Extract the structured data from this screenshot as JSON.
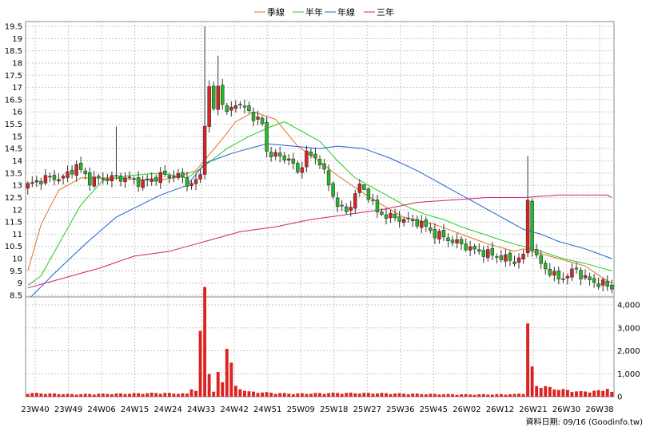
{
  "chart_data": {
    "type": "candlestick",
    "legend": [
      {
        "name": "季線",
        "color": "#e07020"
      },
      {
        "name": "半年",
        "color": "#20cc20"
      },
      {
        "name": "年線",
        "color": "#2060d0"
      },
      {
        "name": "三年",
        "color": "#d02070"
      }
    ],
    "price_axis": {
      "range": [
        8.5,
        19.5
      ],
      "ticks": [
        "8.5",
        "9",
        "9.5",
        "10",
        "10.5",
        "11",
        "11.5",
        "12",
        "12.5",
        "13",
        "13.5",
        "14",
        "14.5",
        "15",
        "15.5",
        "16",
        "16.5",
        "17",
        "17.5",
        "18",
        "18.5",
        "19",
        "19.5"
      ]
    },
    "volume_axis": {
      "range": [
        0,
        4000
      ],
      "ticks": [
        "0",
        "1,000",
        "2,000",
        "3,000",
        "4,000"
      ]
    },
    "x_labels": [
      "23W40",
      "23W49",
      "24W06",
      "24W15",
      "24W24",
      "24W33",
      "24W42",
      "24W51",
      "25W09",
      "25W18",
      "25W27",
      "25W36",
      "25W45",
      "26W02",
      "26W12",
      "26W21",
      "26W30",
      "26W38"
    ],
    "grid": true,
    "source_note": "資料日期: 09/16  (Goodinfo.tw)",
    "anchors": {
      "price": [
        [
          0,
          13.0
        ],
        [
          4,
          13.3
        ],
        [
          8,
          13.3
        ],
        [
          11,
          13.8
        ],
        [
          14,
          13.2
        ],
        [
          18,
          13.3
        ],
        [
          22,
          13.3
        ],
        [
          26,
          13.1
        ],
        [
          30,
          13.4
        ],
        [
          34,
          13.4
        ],
        [
          37,
          13.0
        ],
        [
          39,
          13.4
        ],
        [
          40,
          15.6
        ],
        [
          41,
          16.9
        ],
        [
          42,
          16.1
        ],
        [
          43,
          17.1
        ],
        [
          44,
          16.4
        ],
        [
          45,
          15.9
        ],
        [
          47,
          16.4
        ],
        [
          50,
          16.0
        ],
        [
          53,
          15.5
        ],
        [
          54,
          14.4
        ],
        [
          56,
          14.2
        ],
        [
          59,
          14.1
        ],
        [
          61,
          13.5
        ],
        [
          63,
          14.3
        ],
        [
          66,
          14.0
        ],
        [
          68,
          13.0
        ],
        [
          70,
          12.2
        ],
        [
          72,
          11.9
        ],
        [
          74,
          12.6
        ],
        [
          75,
          13.0
        ],
        [
          77,
          12.6
        ],
        [
          79,
          11.9
        ],
        [
          82,
          11.7
        ],
        [
          85,
          11.6
        ],
        [
          88,
          11.5
        ],
        [
          90,
          11.3
        ],
        [
          92,
          11.0
        ],
        [
          94,
          10.9
        ],
        [
          96,
          10.7
        ],
        [
          98,
          10.6
        ],
        [
          100,
          10.4
        ],
        [
          102,
          10.3
        ],
        [
          104,
          10.2
        ],
        [
          106,
          10.1
        ],
        [
          108,
          10.0
        ],
        [
          110,
          9.9
        ],
        [
          112,
          10.1
        ],
        [
          113,
          12.4
        ],
        [
          114,
          10.5
        ],
        [
          115,
          10.0
        ],
        [
          117,
          9.6
        ],
        [
          119,
          9.3
        ],
        [
          120,
          9.2
        ],
        [
          122,
          9.3
        ],
        [
          124,
          9.6
        ],
        [
          125,
          9.3
        ],
        [
          127,
          9.1
        ],
        [
          129,
          9.0
        ],
        [
          131,
          8.9
        ],
        [
          132,
          8.8
        ]
      ],
      "ma_quarter": [
        [
          0,
          9.5
        ],
        [
          3,
          11.4
        ],
        [
          7,
          12.8
        ],
        [
          12,
          13.3
        ],
        [
          19,
          13.3
        ],
        [
          29,
          13.2
        ],
        [
          33,
          13.3
        ],
        [
          38,
          13.6
        ],
        [
          44,
          14.9
        ],
        [
          47,
          15.6
        ],
        [
          51,
          16.0
        ],
        [
          56,
          15.7
        ],
        [
          61,
          14.6
        ],
        [
          65,
          14.1
        ],
        [
          70,
          13.4
        ],
        [
          74,
          12.9
        ],
        [
          80,
          12.2
        ],
        [
          85,
          11.7
        ],
        [
          92,
          11.4
        ],
        [
          98,
          11.0
        ],
        [
          104,
          10.6
        ],
        [
          110,
          10.3
        ],
        [
          112,
          10.4
        ],
        [
          114,
          10.3
        ],
        [
          118,
          10.1
        ],
        [
          122,
          9.9
        ],
        [
          126,
          9.7
        ],
        [
          130,
          9.2
        ],
        [
          132,
          9.0
        ]
      ],
      "ma_half": [
        [
          0,
          8.9
        ],
        [
          3,
          9.3
        ],
        [
          7,
          10.6
        ],
        [
          12,
          12.2
        ],
        [
          17,
          13.2
        ],
        [
          23,
          13.4
        ],
        [
          30,
          13.5
        ],
        [
          36,
          13.3
        ],
        [
          40,
          13.8
        ],
        [
          45,
          14.5
        ],
        [
          50,
          15.0
        ],
        [
          55,
          15.4
        ],
        [
          58,
          15.6
        ],
        [
          62,
          15.2
        ],
        [
          66,
          14.8
        ],
        [
          70,
          14.0
        ],
        [
          74,
          13.3
        ],
        [
          78,
          12.9
        ],
        [
          82,
          12.5
        ],
        [
          86,
          12.1
        ],
        [
          90,
          11.8
        ],
        [
          94,
          11.6
        ],
        [
          98,
          11.3
        ],
        [
          103,
          11.0
        ],
        [
          108,
          10.7
        ],
        [
          112,
          10.5
        ],
        [
          116,
          10.3
        ],
        [
          121,
          10.0
        ],
        [
          126,
          9.8
        ],
        [
          132,
          9.5
        ]
      ],
      "ma_year": [
        [
          0,
          8.3
        ],
        [
          6,
          9.4
        ],
        [
          13,
          10.6
        ],
        [
          20,
          11.7
        ],
        [
          30,
          12.6
        ],
        [
          36,
          13.0
        ],
        [
          40,
          13.9
        ],
        [
          46,
          14.3
        ],
        [
          50,
          14.5
        ],
        [
          54,
          14.7
        ],
        [
          60,
          14.6
        ],
        [
          66,
          14.5
        ],
        [
          70,
          14.6
        ],
        [
          76,
          14.5
        ],
        [
          82,
          14.1
        ],
        [
          88,
          13.6
        ],
        [
          94,
          13.0
        ],
        [
          100,
          12.4
        ],
        [
          104,
          12.0
        ],
        [
          108,
          11.6
        ],
        [
          112,
          11.2
        ],
        [
          116,
          11.0
        ],
        [
          120,
          10.7
        ],
        [
          126,
          10.4
        ],
        [
          132,
          10.0
        ]
      ],
      "ma_three": [
        [
          0,
          8.8
        ],
        [
          8,
          9.2
        ],
        [
          16,
          9.6
        ],
        [
          24,
          10.1
        ],
        [
          32,
          10.3
        ],
        [
          40,
          10.7
        ],
        [
          48,
          11.1
        ],
        [
          56,
          11.3
        ],
        [
          64,
          11.6
        ],
        [
          72,
          11.8
        ],
        [
          80,
          12.0
        ],
        [
          88,
          12.3
        ],
        [
          96,
          12.4
        ],
        [
          104,
          12.5
        ],
        [
          112,
          12.5
        ],
        [
          120,
          12.6
        ],
        [
          128,
          12.6
        ],
        [
          131,
          12.6
        ],
        [
          132,
          12.5
        ]
      ],
      "volume": [
        [
          0,
          150
        ],
        [
          10,
          100
        ],
        [
          20,
          120
        ],
        [
          30,
          150
        ],
        [
          36,
          120
        ],
        [
          37,
          350
        ],
        [
          38,
          250
        ],
        [
          39,
          2400
        ],
        [
          40,
          4300
        ],
        [
          41,
          1200
        ],
        [
          42,
          200
        ],
        [
          43,
          900
        ],
        [
          44,
          600
        ],
        [
          45,
          2400
        ],
        [
          46,
          1300
        ],
        [
          47,
          400
        ],
        [
          50,
          200
        ],
        [
          60,
          120
        ],
        [
          70,
          150
        ],
        [
          80,
          140
        ],
        [
          90,
          110
        ],
        [
          100,
          90
        ],
        [
          110,
          100
        ],
        [
          112,
          140
        ],
        [
          113,
          2900
        ],
        [
          114,
          1100
        ],
        [
          115,
          450
        ],
        [
          116,
          430
        ],
        [
          117,
          400
        ],
        [
          118,
          360
        ],
        [
          120,
          300
        ],
        [
          125,
          200
        ],
        [
          130,
          250
        ],
        [
          131,
          370
        ],
        [
          132,
          180
        ]
      ]
    }
  }
}
